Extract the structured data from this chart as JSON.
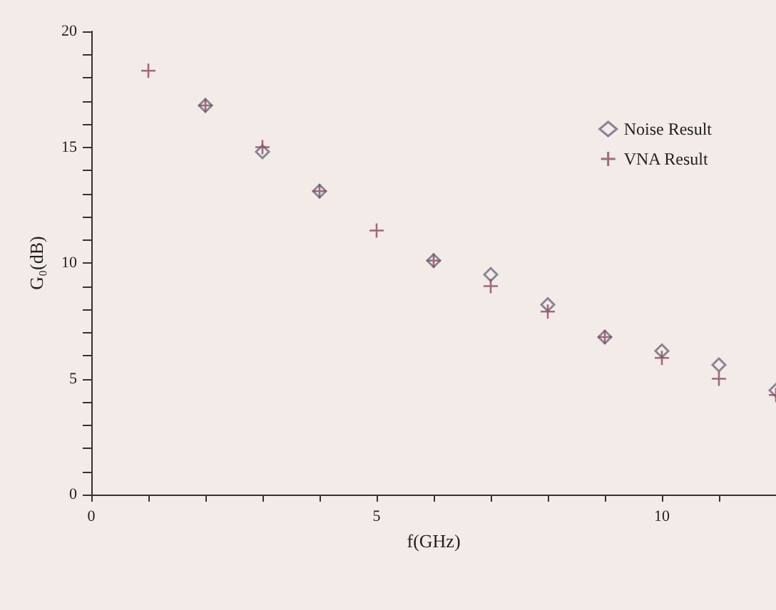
{
  "chart_data": {
    "type": "scatter",
    "xlabel": "f(GHz)",
    "ylabel": "G₀(dB)",
    "x": [
      1,
      2,
      3,
      4,
      5,
      6,
      7,
      8,
      9,
      10,
      11,
      12
    ],
    "series": [
      {
        "name": "Noise Result",
        "color": "#6b6b82",
        "marker": "diamond",
        "values": [
          null,
          16.8,
          14.8,
          13.1,
          null,
          10.1,
          9.5,
          8.2,
          6.8,
          6.2,
          5.6,
          4.5
        ]
      },
      {
        "name": "VNA Result",
        "color": "#8b4a5e",
        "marker": "cross",
        "values": [
          18.3,
          16.8,
          15.0,
          13.1,
          11.4,
          10.1,
          9.0,
          7.9,
          6.8,
          5.9,
          5.0,
          4.3
        ]
      }
    ],
    "xlim": [
      0,
      12
    ],
    "ylim": [
      0,
      20
    ],
    "xticks": [
      0,
      {
        "value": 1,
        "label": null
      },
      {
        "value": 2,
        "label": null
      },
      {
        "value": 3,
        "label": null
      },
      {
        "value": 4,
        "label": null
      },
      5,
      {
        "value": 6,
        "label": null
      },
      {
        "value": 7,
        "label": null
      },
      {
        "value": 8,
        "label": null
      },
      {
        "value": 9,
        "label": null
      },
      10,
      {
        "value": 11,
        "label": null
      },
      {
        "value": 12,
        "label": null
      }
    ],
    "yticks": [
      0,
      {
        "value": 1,
        "label": null
      },
      {
        "value": 2,
        "label": null
      },
      {
        "value": 3,
        "label": null
      },
      {
        "value": 4,
        "label": null
      },
      5,
      {
        "value": 6,
        "label": null
      },
      {
        "value": 7,
        "label": null
      },
      {
        "value": 8,
        "label": null
      },
      {
        "value": 9,
        "label": null
      },
      10,
      {
        "value": 11,
        "label": null
      },
      {
        "value": 12,
        "label": null
      },
      {
        "value": 13,
        "label": null
      },
      {
        "value": 14,
        "label": null
      },
      15,
      {
        "value": 16,
        "label": null
      },
      {
        "value": 17,
        "label": null
      },
      {
        "value": 18,
        "label": null
      },
      {
        "value": 19,
        "label": null
      },
      20
    ],
    "legend": "top right",
    "grid": false
  }
}
